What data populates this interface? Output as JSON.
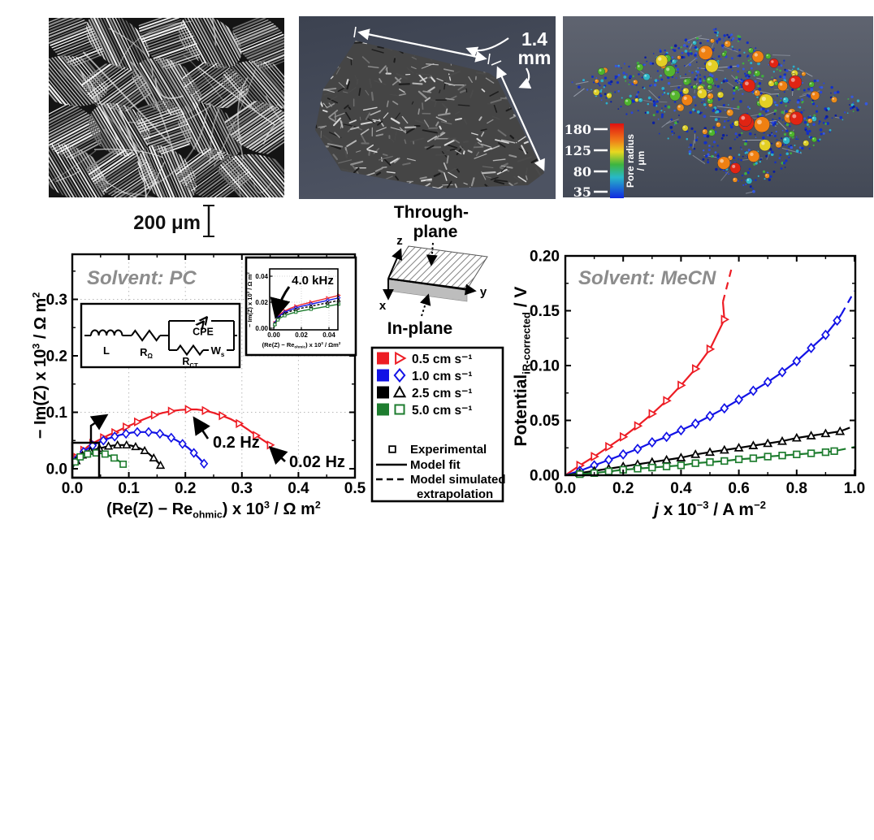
{
  "panels": {
    "sem": {
      "scale_bar_label": "200 μm"
    },
    "tomography": {
      "dimension_value": "1.4",
      "dimension_unit": "mm"
    },
    "pore_network": {
      "colorbar_ticks": [
        "180",
        "125",
        "80",
        "35"
      ],
      "colorbar_label_line1": "Pore radius",
      "colorbar_label_line2": "/ μm",
      "colorbar_colors": [
        "#e01010",
        "#f07818",
        "#e8d820",
        "#3db540",
        "#28b8c8",
        "#1028e0"
      ]
    },
    "orientation": {
      "through_plane_line1": "Through-",
      "through_plane_line2": "plane",
      "in_plane": "In-plane",
      "axis_x": "x",
      "axis_y": "y",
      "axis_z": "z"
    }
  },
  "legend": {
    "flow_rates": [
      {
        "label": "0.5 cm s⁻¹",
        "color": "#ed1c24",
        "marker": "triangle-right"
      },
      {
        "label": "1.0 cm s⁻¹",
        "color": "#1212e6",
        "marker": "diamond"
      },
      {
        "label": "2.5 cm s⁻¹",
        "color": "#000000",
        "marker": "triangle-up"
      },
      {
        "label": "5.0 cm s⁻¹",
        "color": "#1e7d2f",
        "marker": "square"
      }
    ],
    "experimental_label": "Experimental",
    "model_fit_label": "Model fit",
    "extrapolation_label_line1": "Model simulated",
    "extrapolation_label_line2": "extrapolation"
  },
  "chart_data": [
    {
      "id": "nyquist",
      "type": "scatter",
      "title": "Solvent: PC",
      "title_color": "#8c8c8c",
      "xlabel": "(Re(Z) − Re_{ohmic}) x 10^{3} / Ω m^{2}",
      "ylabel": "− Im(Z) x 10^{3} / Ω m^{2}",
      "xlim": [
        0,
        0.5
      ],
      "ylim": [
        -0.015,
        0.38
      ],
      "xticks": [
        "0.0",
        "0.1",
        "0.2",
        "0.3",
        "0.4",
        "0.5"
      ],
      "yticks": [
        "0.0",
        "0.1",
        "0.2",
        "0.3"
      ],
      "grid": true,
      "legend_position": "external-middle",
      "annotations": [
        "0.2 Hz",
        "0.02 Hz"
      ],
      "series": [
        {
          "name": "0.5 cm s⁻¹",
          "color": "#ed1c24",
          "marker": "triangle-right",
          "points": [
            [
              0,
              0
            ],
            [
              0.004,
              0.012
            ],
            [
              0.008,
              0.02
            ],
            [
              0.014,
              0.027
            ],
            [
              0.02,
              0.033
            ],
            [
              0.028,
              0.04
            ],
            [
              0.036,
              0.045
            ],
            [
              0.045,
              0.05
            ],
            [
              0.055,
              0.055
            ],
            [
              0.065,
              0.06
            ],
            [
              0.075,
              0.064
            ],
            [
              0.085,
              0.069
            ],
            [
              0.095,
              0.074
            ],
            [
              0.105,
              0.078
            ],
            [
              0.115,
              0.083
            ],
            [
              0.13,
              0.089
            ],
            [
              0.145,
              0.095
            ],
            [
              0.16,
              0.099
            ],
            [
              0.175,
              0.102
            ],
            [
              0.19,
              0.104
            ],
            [
              0.205,
              0.105
            ],
            [
              0.22,
              0.105
            ],
            [
              0.235,
              0.103
            ],
            [
              0.25,
              0.099
            ],
            [
              0.265,
              0.094
            ],
            [
              0.28,
              0.088
            ],
            [
              0.295,
              0.08
            ],
            [
              0.31,
              0.07
            ],
            [
              0.325,
              0.059
            ],
            [
              0.34,
              0.049
            ],
            [
              0.35,
              0.042
            ]
          ]
        },
        {
          "name": "1.0 cm s⁻¹",
          "color": "#1212e6",
          "marker": "diamond",
          "points": [
            [
              0,
              0
            ],
            [
              0.004,
              0.01
            ],
            [
              0.008,
              0.017
            ],
            [
              0.014,
              0.024
            ],
            [
              0.02,
              0.03
            ],
            [
              0.028,
              0.036
            ],
            [
              0.036,
              0.041
            ],
            [
              0.045,
              0.046
            ],
            [
              0.055,
              0.05
            ],
            [
              0.065,
              0.054
            ],
            [
              0.075,
              0.057
            ],
            [
              0.085,
              0.06
            ],
            [
              0.095,
              0.062
            ],
            [
              0.105,
              0.064
            ],
            [
              0.115,
              0.065
            ],
            [
              0.125,
              0.065
            ],
            [
              0.135,
              0.065
            ],
            [
              0.145,
              0.064
            ],
            [
              0.155,
              0.062
            ],
            [
              0.165,
              0.059
            ],
            [
              0.175,
              0.055
            ],
            [
              0.185,
              0.05
            ],
            [
              0.195,
              0.044
            ],
            [
              0.205,
              0.037
            ],
            [
              0.215,
              0.028
            ],
            [
              0.225,
              0.018
            ],
            [
              0.233,
              0.009
            ]
          ]
        },
        {
          "name": "2.5 cm s⁻¹",
          "color": "#000000",
          "marker": "triangle-up",
          "points": [
            [
              0,
              0
            ],
            [
              0.003,
              0.008
            ],
            [
              0.007,
              0.014
            ],
            [
              0.012,
              0.019
            ],
            [
              0.018,
              0.024
            ],
            [
              0.025,
              0.028
            ],
            [
              0.032,
              0.031
            ],
            [
              0.04,
              0.034
            ],
            [
              0.048,
              0.036
            ],
            [
              0.056,
              0.038
            ],
            [
              0.064,
              0.04
            ],
            [
              0.072,
              0.041
            ],
            [
              0.08,
              0.042
            ],
            [
              0.088,
              0.042
            ],
            [
              0.096,
              0.042
            ],
            [
              0.104,
              0.041
            ],
            [
              0.112,
              0.039
            ],
            [
              0.12,
              0.036
            ],
            [
              0.128,
              0.032
            ],
            [
              0.136,
              0.026
            ],
            [
              0.144,
              0.019
            ],
            [
              0.152,
              0.011
            ],
            [
              0.156,
              0.006
            ]
          ]
        },
        {
          "name": "5.0 cm s⁻¹",
          "color": "#1e7d2f",
          "marker": "square",
          "points": [
            [
              0,
              0
            ],
            [
              0.002,
              0.007
            ],
            [
              0.005,
              0.012
            ],
            [
              0.009,
              0.017
            ],
            [
              0.014,
              0.021
            ],
            [
              0.02,
              0.024
            ],
            [
              0.027,
              0.026
            ],
            [
              0.034,
              0.0275
            ],
            [
              0.042,
              0.028
            ],
            [
              0.05,
              0.0275
            ],
            [
              0.058,
              0.026
            ],
            [
              0.066,
              0.023
            ],
            [
              0.074,
              0.019
            ],
            [
              0.082,
              0.014
            ],
            [
              0.09,
              0.008
            ],
            [
              0.095,
              0.004
            ]
          ]
        }
      ],
      "inset": {
        "label": "4.0 kHz",
        "xlabel": "(Re(Z) − Re_{ohmic}) x 10^{3} / Ωm^{2}",
        "ylabel": "− Im(Z) x 10^{3} / Ω m^{2}",
        "xticks": [
          "0.00",
          "0.02",
          "0.04"
        ],
        "yticks": [
          "0.00",
          "0.02",
          "0.04"
        ],
        "base_points": [
          [
            0,
            0
          ],
          [
            0.0008,
            0.003
          ],
          [
            0.0018,
            0.005
          ],
          [
            0.003,
            0.0068
          ],
          [
            0.005,
            0.0085
          ],
          [
            0.008,
            0.0102
          ],
          [
            0.012,
            0.0118
          ],
          [
            0.016,
            0.013
          ],
          [
            0.021,
            0.0142
          ],
          [
            0.027,
            0.0154
          ],
          [
            0.033,
            0.0166
          ],
          [
            0.039,
            0.0178
          ],
          [
            0.045,
            0.019
          ],
          [
            0.047,
            0.0195
          ]
        ],
        "series_factors": [
          1.3,
          1.2,
          1.1,
          0.95
        ]
      },
      "circuit": {
        "inductor": "L",
        "series_resistor": "R_{Ω}",
        "cpe": "CPE",
        "charge_transfer_resistor": "R_{CT}",
        "warburg": "W_{s}"
      }
    },
    {
      "id": "polarization",
      "type": "line",
      "title": "Solvent: MeCN",
      "title_color": "#8c8c8c",
      "xlabel": "*j* x 10^{−3} / A m^{−2}",
      "ylabel": "Potential_{iR-corrected} / V",
      "xlim": [
        0,
        1.0
      ],
      "ylim": [
        0,
        0.2
      ],
      "xticks": [
        "0.0",
        "0.2",
        "0.4",
        "0.6",
        "0.8",
        "1.0"
      ],
      "yticks": [
        "0.00",
        "0.05",
        "0.10",
        "0.15",
        "0.20"
      ],
      "grid": false,
      "series": [
        {
          "name": "0.5 cm s⁻¹",
          "color": "#ed1c24",
          "marker": "triangle-right",
          "markers": [
            [
              0.05,
              0.009
            ],
            [
              0.1,
              0.017
            ],
            [
              0.15,
              0.026
            ],
            [
              0.2,
              0.035
            ],
            [
              0.25,
              0.045
            ],
            [
              0.3,
              0.056
            ],
            [
              0.35,
              0.068
            ],
            [
              0.4,
              0.082
            ],
            [
              0.45,
              0.097
            ],
            [
              0.5,
              0.115
            ],
            [
              0.55,
              0.142
            ]
          ],
          "fit_end": [
            0.545,
            0.158
          ],
          "dash_end": [
            0.578,
            0.192
          ]
        },
        {
          "name": "1.0 cm s⁻¹",
          "color": "#1212e6",
          "marker": "diamond",
          "markers": [
            [
              0.05,
              0.004
            ],
            [
              0.1,
              0.009
            ],
            [
              0.15,
              0.014
            ],
            [
              0.2,
              0.019
            ],
            [
              0.25,
              0.024
            ],
            [
              0.3,
              0.03
            ],
            [
              0.35,
              0.035
            ],
            [
              0.4,
              0.041
            ],
            [
              0.45,
              0.047
            ],
            [
              0.5,
              0.054
            ],
            [
              0.55,
              0.061
            ],
            [
              0.6,
              0.069
            ],
            [
              0.65,
              0.077
            ],
            [
              0.7,
              0.085
            ],
            [
              0.75,
              0.094
            ],
            [
              0.8,
              0.104
            ],
            [
              0.85,
              0.116
            ],
            [
              0.9,
              0.128
            ],
            [
              0.94,
              0.141
            ]
          ],
          "fit_end": [
            0.955,
            0.147
          ],
          "dash_end": [
            1.0,
            0.168
          ]
        },
        {
          "name": "2.5 cm s⁻¹",
          "color": "#000000",
          "marker": "triangle-up",
          "markers": [
            [
              0.05,
              0.002
            ],
            [
              0.1,
              0.004
            ],
            [
              0.15,
              0.006
            ],
            [
              0.2,
              0.008
            ],
            [
              0.25,
              0.01
            ],
            [
              0.3,
              0.012
            ],
            [
              0.35,
              0.014
            ],
            [
              0.4,
              0.016
            ],
            [
              0.45,
              0.019
            ],
            [
              0.5,
              0.021
            ],
            [
              0.55,
              0.023
            ],
            [
              0.6,
              0.025
            ],
            [
              0.65,
              0.027
            ],
            [
              0.7,
              0.029
            ],
            [
              0.75,
              0.031
            ],
            [
              0.8,
              0.034
            ],
            [
              0.85,
              0.036
            ],
            [
              0.9,
              0.038
            ],
            [
              0.95,
              0.04
            ]
          ],
          "fit_end": [
            0.96,
            0.041
          ],
          "dash_end": [
            1.005,
            0.0455
          ]
        },
        {
          "name": "5.0 cm s⁻¹",
          "color": "#1e7d2f",
          "marker": "square",
          "markers": [
            [
              0.05,
              0.001
            ],
            [
              0.1,
              0.002
            ],
            [
              0.15,
              0.0035
            ],
            [
              0.2,
              0.005
            ],
            [
              0.25,
              0.006
            ],
            [
              0.3,
              0.007
            ],
            [
              0.35,
              0.008
            ],
            [
              0.4,
              0.009
            ],
            [
              0.45,
              0.011
            ],
            [
              0.5,
              0.012
            ],
            [
              0.55,
              0.013
            ],
            [
              0.6,
              0.0145
            ],
            [
              0.65,
              0.0155
            ],
            [
              0.7,
              0.017
            ],
            [
              0.75,
              0.018
            ],
            [
              0.8,
              0.019
            ],
            [
              0.85,
              0.02
            ],
            [
              0.9,
              0.021
            ],
            [
              0.93,
              0.022
            ]
          ],
          "fit_end": [
            0.945,
            0.0228
          ],
          "dash_end": [
            1.005,
            0.026
          ]
        }
      ]
    }
  ]
}
